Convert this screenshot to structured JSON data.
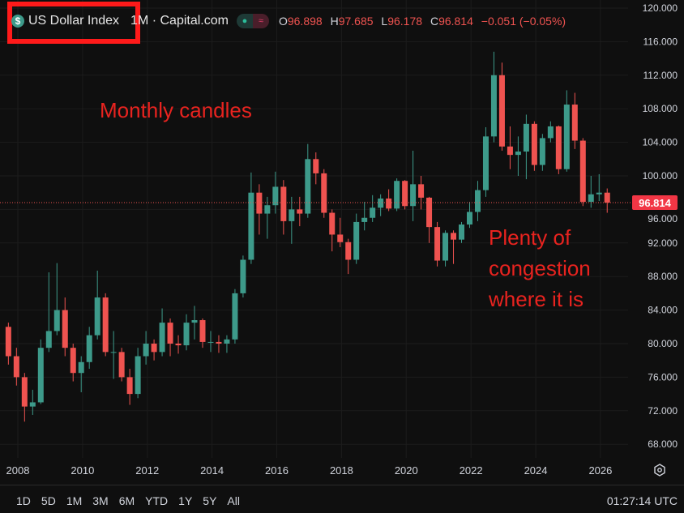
{
  "header": {
    "symbol": "US Dollar Index",
    "interval_source": "1M · Capital.com",
    "open_label": "O",
    "open": "96.898",
    "high_label": "H",
    "high": "97.685",
    "low_label": "L",
    "low": "96.178",
    "close_label": "C",
    "close": "96.814",
    "change": "−0.051 (−0.05%)",
    "icons": [
      "dollar-coin-icon",
      "market-open-dot-icon",
      "wave-icon"
    ]
  },
  "annotations": {
    "monthly": "Monthly candles",
    "congestion": [
      "Plenty of",
      "congestion",
      "where it is"
    ]
  },
  "colors": {
    "up": "#3d9a8a",
    "down": "#ef5350",
    "annotation": "#e8231f",
    "highlight_box": "#ff1a1a",
    "background": "#0f0f0f"
  },
  "range_buttons": [
    "1D",
    "5D",
    "1M",
    "3M",
    "6M",
    "YTD",
    "1Y",
    "5Y",
    "All"
  ],
  "clock": "01:27:14 UTC",
  "chart_data": {
    "type": "candlestick",
    "interval": "1M",
    "last_price_label": "96.814",
    "y_ticks": [
      "68.000",
      "72.000",
      "76.000",
      "80.000",
      "84.000",
      "88.000",
      "92.000",
      "96.000",
      "100.000",
      "104.000",
      "108.000",
      "112.000",
      "116.000",
      "120.000"
    ],
    "x_ticks": [
      "2008",
      "2010",
      "2012",
      "2014",
      "2016",
      "2018",
      "2020",
      "2022",
      "2024",
      "2026"
    ],
    "ylim": [
      68,
      120
    ],
    "xlim": [
      "2007-08",
      "2026-08"
    ],
    "grid": true,
    "candles": [
      [
        "2007-08",
        82.0,
        82.5,
        77.5,
        78.5
      ],
      [
        "2007-11",
        78.5,
        79.5,
        75.0,
        76.0
      ],
      [
        "2008-02",
        76.0,
        76.5,
        70.7,
        72.5
      ],
      [
        "2008-05",
        72.5,
        74.5,
        71.5,
        73.0
      ],
      [
        "2008-08",
        73.0,
        80.5,
        72.8,
        79.5
      ],
      [
        "2008-11",
        79.5,
        88.5,
        79.0,
        81.5
      ],
      [
        "2009-02",
        81.5,
        89.6,
        81.0,
        84.0
      ],
      [
        "2009-05",
        84.0,
        85.5,
        78.5,
        79.5
      ],
      [
        "2009-08",
        79.5,
        80.0,
        75.5,
        76.5
      ],
      [
        "2009-11",
        76.5,
        78.5,
        74.2,
        77.8
      ],
      [
        "2010-02",
        77.8,
        82.0,
        77.0,
        81.0
      ],
      [
        "2010-05",
        81.0,
        88.7,
        80.5,
        85.5
      ],
      [
        "2010-08",
        85.5,
        86.0,
        78.5,
        79.0
      ],
      [
        "2010-11",
        79.0,
        81.5,
        75.8,
        79.0
      ],
      [
        "2011-02",
        79.0,
        79.5,
        75.5,
        76.0
      ],
      [
        "2011-05",
        76.0,
        77.0,
        72.7,
        74.0
      ],
      [
        "2011-08",
        74.0,
        79.5,
        73.5,
        78.5
      ],
      [
        "2011-11",
        78.5,
        81.5,
        77.5,
        80.0
      ],
      [
        "2012-02",
        80.0,
        80.5,
        78.0,
        79.0
      ],
      [
        "2012-05",
        79.0,
        84.2,
        78.5,
        82.5
      ],
      [
        "2012-08",
        82.5,
        83.0,
        78.5,
        80.0
      ],
      [
        "2012-11",
        80.0,
        81.0,
        78.8,
        79.8
      ],
      [
        "2013-02",
        79.8,
        83.5,
        79.2,
        82.5
      ],
      [
        "2013-05",
        82.5,
        84.5,
        80.5,
        82.8
      ],
      [
        "2013-08",
        82.8,
        83.0,
        79.5,
        80.2
      ],
      [
        "2013-11",
        80.2,
        81.5,
        79.0,
        80.2
      ],
      [
        "2014-02",
        80.2,
        81.0,
        78.9,
        80.0
      ],
      [
        "2014-05",
        80.0,
        81.0,
        78.9,
        80.5
      ],
      [
        "2014-08",
        80.5,
        86.5,
        80.0,
        86.0
      ],
      [
        "2014-11",
        86.0,
        90.5,
        85.5,
        90.0
      ],
      [
        "2015-02",
        90.0,
        100.4,
        89.5,
        98.0
      ],
      [
        "2015-05",
        98.0,
        99.0,
        93.0,
        95.5
      ],
      [
        "2015-08",
        95.5,
        97.5,
        92.5,
        96.5
      ],
      [
        "2015-11",
        96.5,
        100.5,
        95.5,
        98.7
      ],
      [
        "2016-02",
        98.7,
        99.5,
        93.0,
        94.6
      ],
      [
        "2016-05",
        94.6,
        97.5,
        91.9,
        96.0
      ],
      [
        "2016-08",
        96.0,
        97.5,
        94.0,
        95.5
      ],
      [
        "2016-11",
        95.5,
        103.8,
        95.0,
        102.0
      ],
      [
        "2017-02",
        102.0,
        102.8,
        99.0,
        100.3
      ],
      [
        "2017-05",
        100.3,
        100.8,
        95.0,
        95.6
      ],
      [
        "2017-08",
        95.6,
        96.0,
        91.0,
        93.0
      ],
      [
        "2017-11",
        93.0,
        95.0,
        91.5,
        92.1
      ],
      [
        "2018-02",
        92.1,
        92.5,
        88.3,
        90.0
      ],
      [
        "2018-05",
        90.0,
        95.5,
        89.5,
        94.5
      ],
      [
        "2018-08",
        94.5,
        96.9,
        93.5,
        95.0
      ],
      [
        "2018-11",
        95.0,
        97.7,
        94.5,
        96.2
      ],
      [
        "2019-02",
        96.2,
        97.8,
        95.2,
        97.3
      ],
      [
        "2019-05",
        97.3,
        98.4,
        95.8,
        96.1
      ],
      [
        "2019-08",
        96.1,
        99.7,
        95.8,
        99.4
      ],
      [
        "2019-11",
        99.4,
        99.5,
        96.0,
        96.4
      ],
      [
        "2020-02",
        96.4,
        103.0,
        94.6,
        99.0
      ],
      [
        "2020-05",
        99.0,
        100.0,
        96.0,
        97.4
      ],
      [
        "2020-08",
        97.4,
        97.5,
        92.0,
        93.9
      ],
      [
        "2020-11",
        93.9,
        94.5,
        89.2,
        89.9
      ],
      [
        "2021-02",
        89.9,
        93.5,
        89.2,
        93.2
      ],
      [
        "2021-05",
        93.2,
        93.5,
        89.5,
        92.4
      ],
      [
        "2021-08",
        92.4,
        94.5,
        92.0,
        94.2
      ],
      [
        "2021-11",
        94.2,
        96.9,
        93.8,
        95.7
      ],
      [
        "2022-02",
        95.7,
        99.4,
        94.6,
        98.3
      ],
      [
        "2022-05",
        98.3,
        105.8,
        97.5,
        104.7
      ],
      [
        "2022-08",
        104.7,
        114.8,
        104.0,
        112.0
      ],
      [
        "2022-11",
        112.0,
        113.5,
        103.0,
        103.5
      ],
      [
        "2023-02",
        103.5,
        105.9,
        100.8,
        102.5
      ],
      [
        "2023-05",
        102.5,
        104.7,
        100.0,
        102.9
      ],
      [
        "2023-08",
        102.9,
        107.3,
        99.6,
        106.2
      ],
      [
        "2023-11",
        106.2,
        106.5,
        100.6,
        101.3
      ],
      [
        "2024-02",
        101.3,
        105.0,
        100.6,
        104.5
      ],
      [
        "2024-05",
        104.5,
        106.5,
        104.0,
        105.9
      ],
      [
        "2024-08",
        105.9,
        106.0,
        100.2,
        100.8
      ],
      [
        "2024-11",
        100.8,
        110.2,
        100.5,
        108.5
      ],
      [
        "2025-02",
        108.5,
        109.9,
        103.2,
        104.2
      ],
      [
        "2025-05",
        104.2,
        104.5,
        96.4,
        96.9
      ],
      [
        "2025-08",
        96.9,
        100.0,
        96.2,
        97.8
      ],
      [
        "2025-11",
        97.8,
        100.2,
        97.0,
        98.0
      ],
      [
        "2026-02",
        98.0,
        98.5,
        95.6,
        96.814
      ]
    ]
  }
}
